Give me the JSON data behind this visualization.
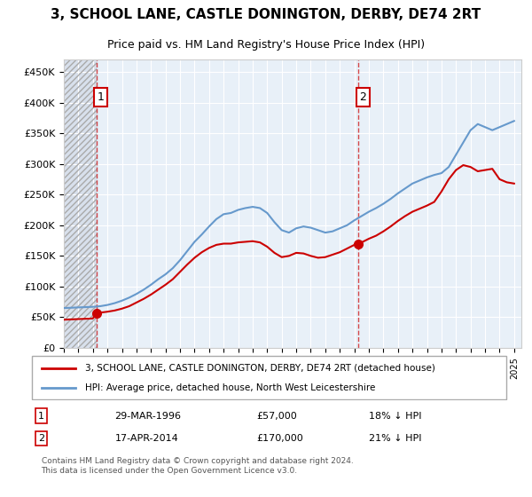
{
  "title": "3, SCHOOL LANE, CASTLE DONINGTON, DERBY, DE74 2RT",
  "subtitle": "Price paid vs. HM Land Registry's House Price Index (HPI)",
  "legend_line1": "3, SCHOOL LANE, CASTLE DONINGTON, DERBY, DE74 2RT (detached house)",
  "legend_line2": "HPI: Average price, detached house, North West Leicestershire",
  "sale1_label": "1",
  "sale1_date": "29-MAR-1996",
  "sale1_price": "£57,000",
  "sale1_hpi": "18% ↓ HPI",
  "sale2_label": "2",
  "sale2_date": "17-APR-2014",
  "sale2_price": "£170,000",
  "sale2_hpi": "21% ↓ HPI",
  "footer": "Contains HM Land Registry data © Crown copyright and database right 2024.\nThis data is licensed under the Open Government Licence v3.0.",
  "hpi_color": "#6699cc",
  "price_color": "#cc0000",
  "marker_color": "#cc0000",
  "dashed_line_color": "#cc0000",
  "hatch_color": "#cccccc",
  "background_plot": "#e8f0f8",
  "background_hatch": "#d0d8e8",
  "ylim": [
    0,
    470000
  ],
  "yticks": [
    0,
    50000,
    100000,
    150000,
    200000,
    250000,
    300000,
    350000,
    400000,
    450000
  ],
  "sale1_x": 1996.24,
  "sale1_y": 57000,
  "sale2_x": 2014.29,
  "sale2_y": 170000,
  "hpi_years": [
    1994,
    1994.5,
    1995,
    1995.5,
    1996,
    1996.5,
    1997,
    1997.5,
    1998,
    1998.5,
    1999,
    1999.5,
    2000,
    2000.5,
    2001,
    2001.5,
    2002,
    2002.5,
    2003,
    2003.5,
    2004,
    2004.5,
    2005,
    2005.5,
    2006,
    2006.5,
    2007,
    2007.5,
    2008,
    2008.5,
    2009,
    2009.5,
    2010,
    2010.5,
    2011,
    2011.5,
    2012,
    2012.5,
    2013,
    2013.5,
    2014,
    2014.5,
    2015,
    2015.5,
    2016,
    2016.5,
    2017,
    2017.5,
    2018,
    2018.5,
    2019,
    2019.5,
    2020,
    2020.5,
    2021,
    2021.5,
    2022,
    2022.5,
    2023,
    2023.5,
    2024,
    2024.5,
    2025
  ],
  "hpi_values": [
    65000,
    65500,
    66000,
    66500,
    67000,
    68000,
    70000,
    73000,
    77000,
    82000,
    88000,
    95000,
    103000,
    112000,
    120000,
    130000,
    143000,
    158000,
    173000,
    185000,
    198000,
    210000,
    218000,
    220000,
    225000,
    228000,
    230000,
    228000,
    220000,
    205000,
    192000,
    188000,
    195000,
    198000,
    196000,
    192000,
    188000,
    190000,
    195000,
    200000,
    208000,
    215000,
    222000,
    228000,
    235000,
    243000,
    252000,
    260000,
    268000,
    273000,
    278000,
    282000,
    285000,
    295000,
    315000,
    335000,
    355000,
    365000,
    360000,
    355000,
    360000,
    365000,
    370000
  ],
  "price_years": [
    1994,
    1994.5,
    1995,
    1995.5,
    1996,
    1996.24,
    1996.5,
    1997,
    1997.5,
    1998,
    1998.5,
    1999,
    1999.5,
    2000,
    2000.5,
    2001,
    2001.5,
    2002,
    2002.5,
    2003,
    2003.5,
    2004,
    2004.5,
    2005,
    2005.5,
    2006,
    2006.5,
    2007,
    2007.5,
    2008,
    2008.5,
    2009,
    2009.5,
    2010,
    2010.5,
    2011,
    2011.5,
    2012,
    2012.5,
    2013,
    2013.5,
    2014,
    2014.29,
    2014.5,
    2015,
    2015.5,
    2016,
    2016.5,
    2017,
    2017.5,
    2018,
    2018.5,
    2019,
    2019.5,
    2020,
    2020.5,
    2021,
    2021.5,
    2022,
    2022.5,
    2023,
    2023.5,
    2024,
    2024.5,
    2025
  ],
  "price_values": [
    46000,
    46500,
    47000,
    47500,
    48000,
    57000,
    57500,
    59000,
    61000,
    64000,
    68000,
    74000,
    80000,
    87000,
    95000,
    103000,
    112000,
    124000,
    136000,
    147000,
    156000,
    163000,
    168000,
    170000,
    170000,
    172000,
    173000,
    174000,
    172000,
    165000,
    155000,
    148000,
    150000,
    155000,
    154000,
    150000,
    147000,
    148000,
    152000,
    156000,
    162000,
    168000,
    170000,
    172000,
    178000,
    183000,
    190000,
    198000,
    207000,
    215000,
    222000,
    227000,
    232000,
    238000,
    255000,
    275000,
    290000,
    298000,
    295000,
    288000,
    290000,
    292000,
    275000,
    270000,
    268000
  ],
  "xlim_start": 1994,
  "xlim_end": 2025.5,
  "xticks": [
    1994,
    1995,
    1996,
    1997,
    1998,
    1999,
    2000,
    2001,
    2002,
    2003,
    2004,
    2005,
    2006,
    2007,
    2008,
    2009,
    2010,
    2011,
    2012,
    2013,
    2014,
    2015,
    2016,
    2017,
    2018,
    2019,
    2020,
    2021,
    2022,
    2023,
    2024,
    2025
  ]
}
